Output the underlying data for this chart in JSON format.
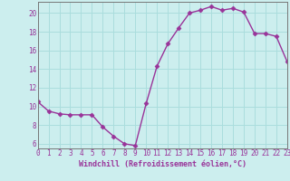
{
  "x": [
    0,
    1,
    2,
    3,
    4,
    5,
    6,
    7,
    8,
    9,
    10,
    11,
    12,
    13,
    14,
    15,
    16,
    17,
    18,
    19,
    20,
    21,
    22,
    23
  ],
  "y": [
    10.5,
    9.5,
    9.2,
    9.1,
    9.1,
    9.1,
    7.8,
    6.8,
    6.0,
    5.8,
    10.3,
    14.3,
    16.7,
    18.4,
    20.0,
    20.3,
    20.7,
    20.3,
    20.5,
    20.1,
    17.8,
    17.8,
    17.5,
    14.8
  ],
  "xlim": [
    0,
    23
  ],
  "ylim": [
    5.5,
    21.2
  ],
  "yticks": [
    6,
    8,
    10,
    12,
    14,
    16,
    18,
    20
  ],
  "xticks": [
    0,
    1,
    2,
    3,
    4,
    5,
    6,
    7,
    8,
    9,
    10,
    11,
    12,
    13,
    14,
    15,
    16,
    17,
    18,
    19,
    20,
    21,
    22,
    23
  ],
  "xlabel": "Windchill (Refroidissement éolien,°C)",
  "line_color": "#993399",
  "marker": "D",
  "marker_size": 2.5,
  "linewidth": 1.0,
  "background_color": "#cceeee",
  "grid_color": "#aadddd",
  "tick_fontsize": 5.5,
  "xlabel_fontsize": 6.0
}
